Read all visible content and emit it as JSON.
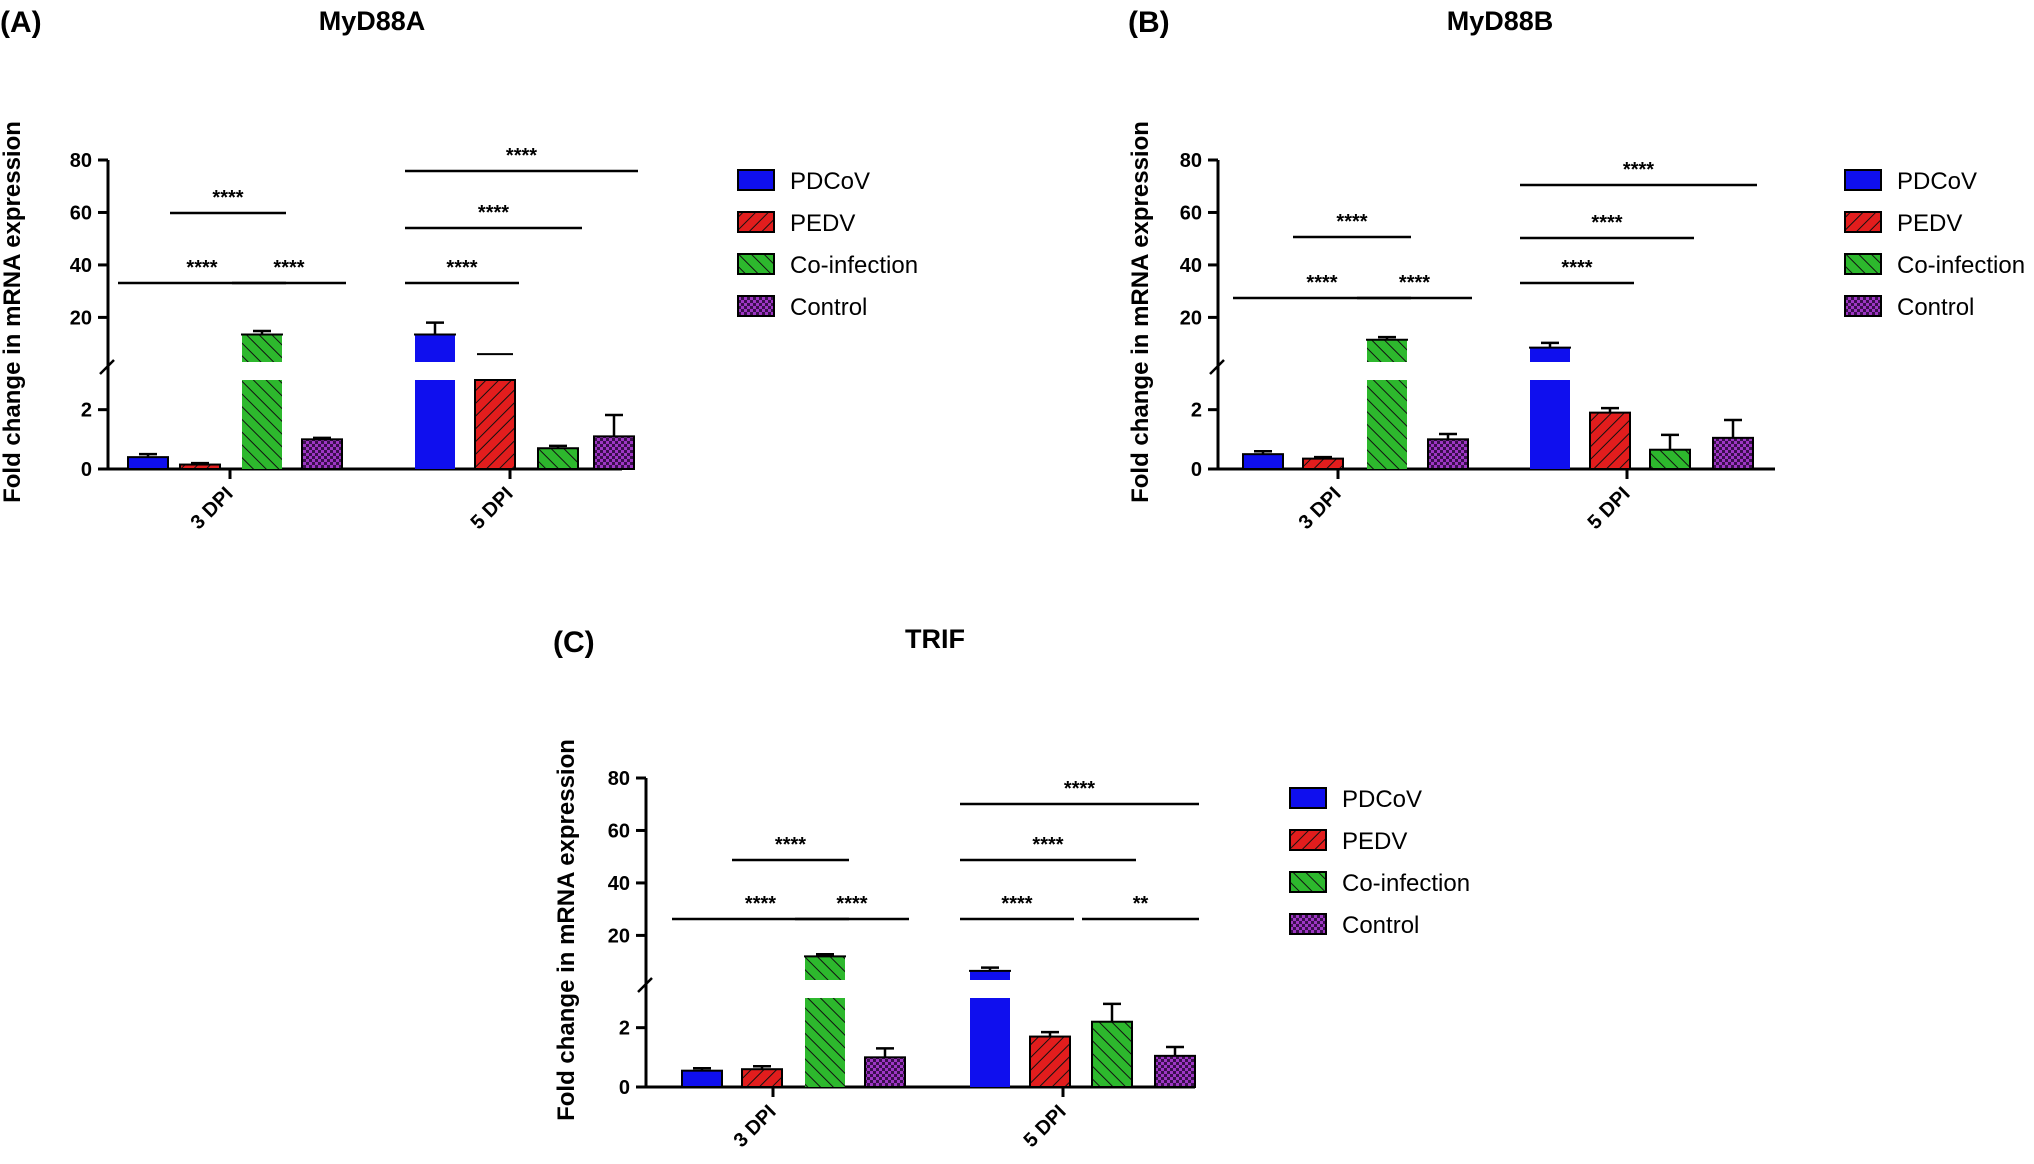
{
  "chart_data": [
    {
      "panel": "(A)",
      "title": "MyD88A",
      "type": "bar",
      "ylabel": "Fold change in mRNA expression",
      "categories": [
        "3 DPI",
        "5 DPI"
      ],
      "series": [
        {
          "name": "PDCoV",
          "values": [
            0.4,
            13.5
          ],
          "errors": [
            0.1,
            4.5
          ]
        },
        {
          "name": "PEDV",
          "values": [
            0.15,
            3
          ],
          "errors": [
            0.05,
            0.0
          ]
        },
        {
          "name": "Co-infection",
          "values": [
            13.5,
            0.7
          ],
          "errors": [
            1.3,
            0.08
          ]
        },
        {
          "name": "Control",
          "values": [
            1.0,
            1.1
          ],
          "errors": [
            0.05,
            0.72
          ]
        }
      ],
      "y_lower_ticks": [
        "0",
        "2"
      ],
      "y_upper_ticks": [
        "20",
        "40",
        "60",
        "80"
      ],
      "ylim_lower": [
        0,
        3
      ],
      "ylim_upper": [
        3,
        80
      ],
      "significance": [
        {
          "category": "3 DPI",
          "from": "PDCoV",
          "to": "Co-infection",
          "label": "****"
        },
        {
          "category": "3 DPI",
          "from": "PEDV",
          "to": "Co-infection",
          "label": "****"
        },
        {
          "category": "3 DPI",
          "from": "Co-infection",
          "to": "Control",
          "label": "****"
        },
        {
          "category": "5 DPI",
          "from": "PDCoV",
          "to": "PEDV",
          "label": "****"
        },
        {
          "category": "5 DPI",
          "from": "PDCoV",
          "to": "Co-infection",
          "label": "****"
        },
        {
          "category": "5 DPI",
          "from": "PDCoV",
          "to": "Control",
          "label": "****"
        }
      ]
    },
    {
      "panel": "(B)",
      "title": "MyD88B",
      "type": "bar",
      "ylabel": "Fold change in mRNA expression",
      "categories": [
        "3 DPI",
        "5 DPI"
      ],
      "series": [
        {
          "name": "PDCoV",
          "values": [
            0.5,
            8.5
          ],
          "errors": [
            0.1,
            1.8
          ]
        },
        {
          "name": "PEDV",
          "values": [
            0.35,
            1.9
          ],
          "errors": [
            0.05,
            0.15
          ]
        },
        {
          "name": "Co-infection",
          "values": [
            11.5,
            0.65
          ],
          "errors": [
            1.0,
            0.5
          ]
        },
        {
          "name": "Control",
          "values": [
            1.0,
            1.05
          ],
          "errors": [
            0.18,
            0.6
          ]
        }
      ],
      "y_lower_ticks": [
        "0",
        "2"
      ],
      "y_upper_ticks": [
        "20",
        "40",
        "60",
        "80"
      ],
      "ylim_lower": [
        0,
        3
      ],
      "ylim_upper": [
        3,
        80
      ],
      "significance": [
        {
          "category": "3 DPI",
          "from": "PDCoV",
          "to": "Co-infection",
          "label": "****"
        },
        {
          "category": "3 DPI",
          "from": "PEDV",
          "to": "Co-infection",
          "label": "****"
        },
        {
          "category": "3 DPI",
          "from": "Co-infection",
          "to": "Control",
          "label": "****"
        },
        {
          "category": "5 DPI",
          "from": "PDCoV",
          "to": "PEDV",
          "label": "****"
        },
        {
          "category": "5 DPI",
          "from": "PDCoV",
          "to": "Co-infection",
          "label": "****"
        },
        {
          "category": "5 DPI",
          "from": "PDCoV",
          "to": "Control",
          "label": "****"
        }
      ]
    },
    {
      "panel": "(C)",
      "title": "TRIF",
      "type": "bar",
      "ylabel": "Fold change in mRNA expression",
      "categories": [
        "3 DPI",
        "5 DPI"
      ],
      "series": [
        {
          "name": "PDCoV",
          "values": [
            0.55,
            6.5
          ],
          "errors": [
            0.08,
            1.2
          ]
        },
        {
          "name": "PEDV",
          "values": [
            0.6,
            1.7
          ],
          "errors": [
            0.1,
            0.15
          ]
        },
        {
          "name": "Co-infection",
          "values": [
            12.0,
            2.2
          ],
          "errors": [
            0.8,
            0.6
          ]
        },
        {
          "name": "Control",
          "values": [
            1.0,
            1.05
          ],
          "errors": [
            0.3,
            0.3
          ]
        }
      ],
      "y_lower_ticks": [
        "0",
        "2"
      ],
      "y_upper_ticks": [
        "20",
        "40",
        "60",
        "80"
      ],
      "ylim_lower": [
        0,
        3
      ],
      "ylim_upper": [
        3,
        80
      ],
      "significance": [
        {
          "category": "3 DPI",
          "from": "PDCoV",
          "to": "Co-infection",
          "label": "****"
        },
        {
          "category": "3 DPI",
          "from": "PEDV",
          "to": "Co-infection",
          "label": "****"
        },
        {
          "category": "3 DPI",
          "from": "Co-infection",
          "to": "Control",
          "label": "****"
        },
        {
          "category": "5 DPI",
          "from": "PDCoV",
          "to": "PEDV",
          "label": "****"
        },
        {
          "category": "5 DPI",
          "from": "PDCoV",
          "to": "Co-infection",
          "label": "****"
        },
        {
          "category": "5 DPI",
          "from": "PDCoV",
          "to": "Control",
          "label": "****"
        },
        {
          "category": "5 DPI",
          "from": "Co-infection",
          "to": "Control",
          "label": "**"
        }
      ]
    }
  ],
  "legend": {
    "items": [
      "PDCoV",
      "PEDV",
      "Co-infection",
      "Control"
    ]
  },
  "colors": {
    "PDCoV": "#0f0fee",
    "PEDV": "#e21d1d",
    "Co-infection": "#2db82d",
    "Control": "#9e36c4"
  }
}
